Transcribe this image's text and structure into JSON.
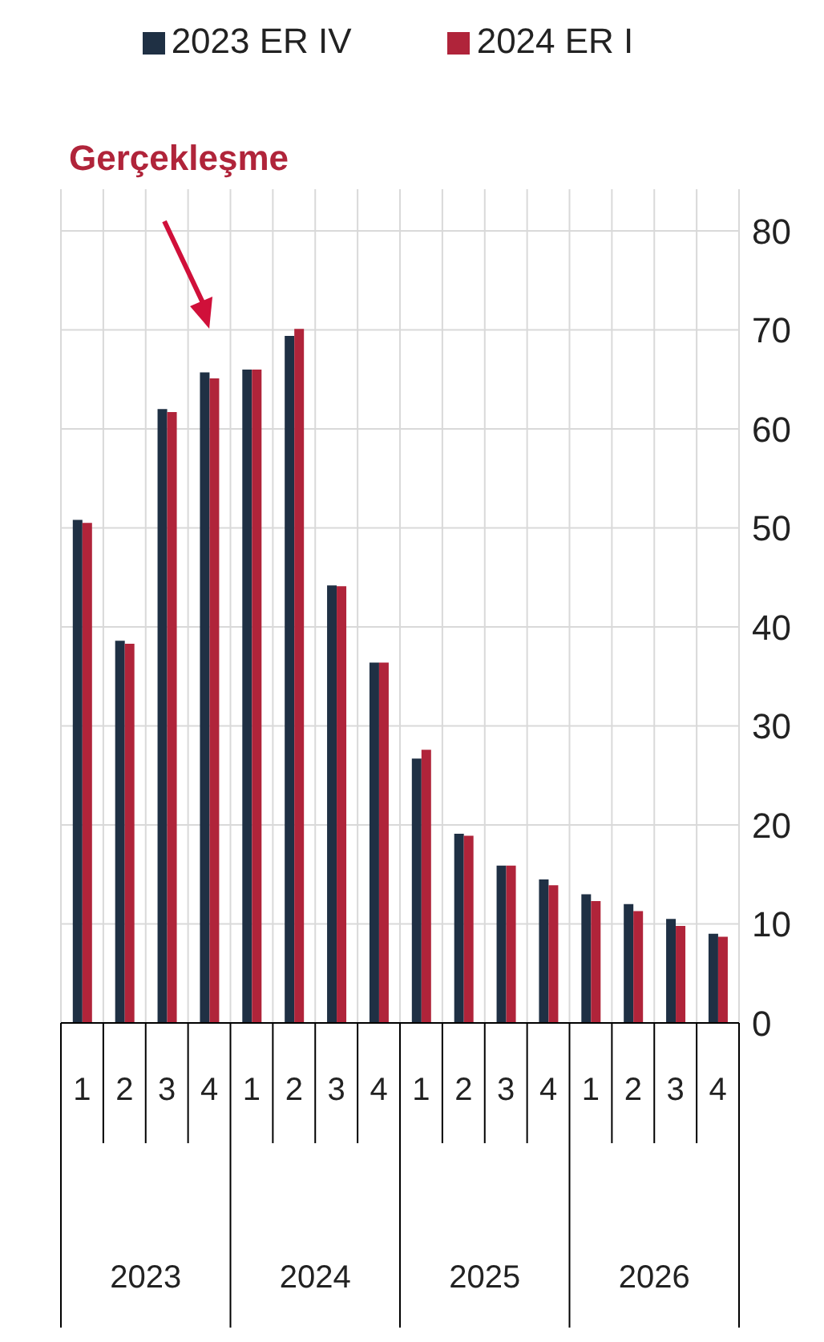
{
  "chart_data": {
    "type": "bar",
    "categories": [
      "1",
      "2",
      "3",
      "4",
      "1",
      "2",
      "3",
      "4",
      "1",
      "2",
      "3",
      "4",
      "1",
      "2",
      "3",
      "4"
    ],
    "series": [
      {
        "name": "2023 ER IV",
        "color": "#1f3044",
        "values": [
          50.8,
          38.6,
          62.0,
          65.7,
          66.0,
          69.4,
          44.2,
          36.4,
          26.7,
          19.1,
          15.9,
          14.5,
          13.0,
          12.0,
          10.5,
          9.0
        ]
      },
      {
        "name": "2024 ER I",
        "color": "#b0243a",
        "values": [
          50.5,
          38.3,
          61.7,
          65.1,
          66.0,
          70.1,
          44.1,
          36.4,
          27.6,
          18.9,
          15.9,
          13.9,
          12.3,
          11.3,
          9.8,
          8.7
        ]
      }
    ],
    "ylim": [
      0,
      80
    ],
    "yticks": [
      0,
      10,
      20,
      30,
      40,
      50,
      60,
      70,
      80
    ],
    "grid": true,
    "legend": "top",
    "annotations": [
      "Gerçekleşme",
      "2023",
      "2024",
      "2025",
      "2026"
    ]
  }
}
